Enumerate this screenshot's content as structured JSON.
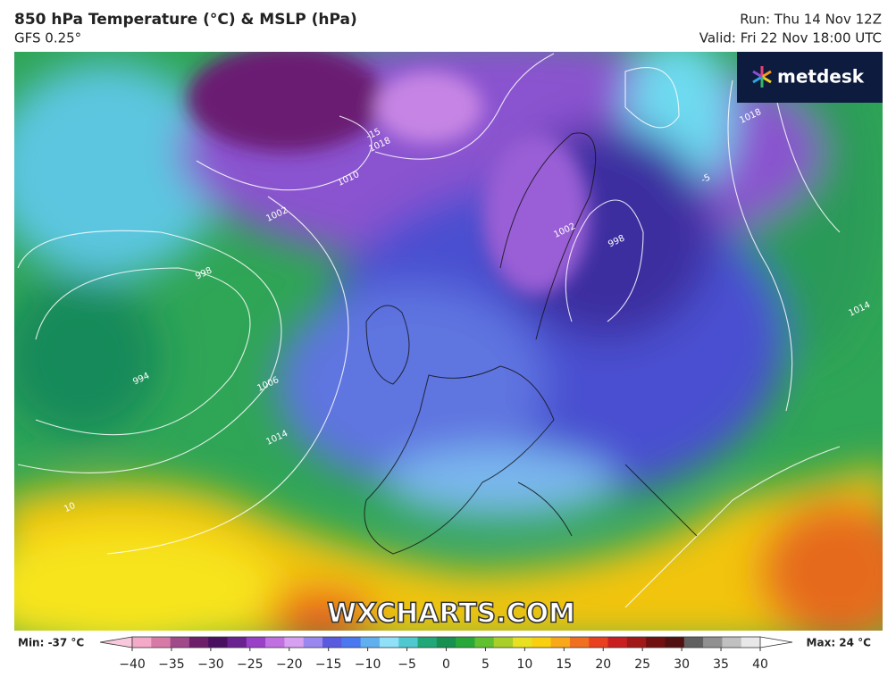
{
  "header": {
    "title": "850 hPa Temperature (°C) & MSLP (hPa)",
    "model": "GFS 0.25°",
    "run": "Run: Thu 14 Nov 12Z",
    "valid": "Valid: Fri 22 Nov 18:00 UTC"
  },
  "logo": "metdesk",
  "watermark": "WXCHARTS.COM",
  "legend": {
    "min": "Min: -37 °C",
    "max": "Max: 24 °C",
    "ticks": [
      "−40",
      "−35",
      "−30",
      "−25",
      "−20",
      "−15",
      "−10",
      "−5",
      "0",
      "5",
      "10",
      "15",
      "20",
      "25",
      "30",
      "35",
      "40"
    ]
  },
  "contour_labels": [
    "994",
    "1006",
    "1014",
    "1002",
    "1018",
    "1010",
    "998",
    "1002",
    "-15",
    "-5",
    "10",
    "1014",
    "998",
    "1018"
  ]
}
